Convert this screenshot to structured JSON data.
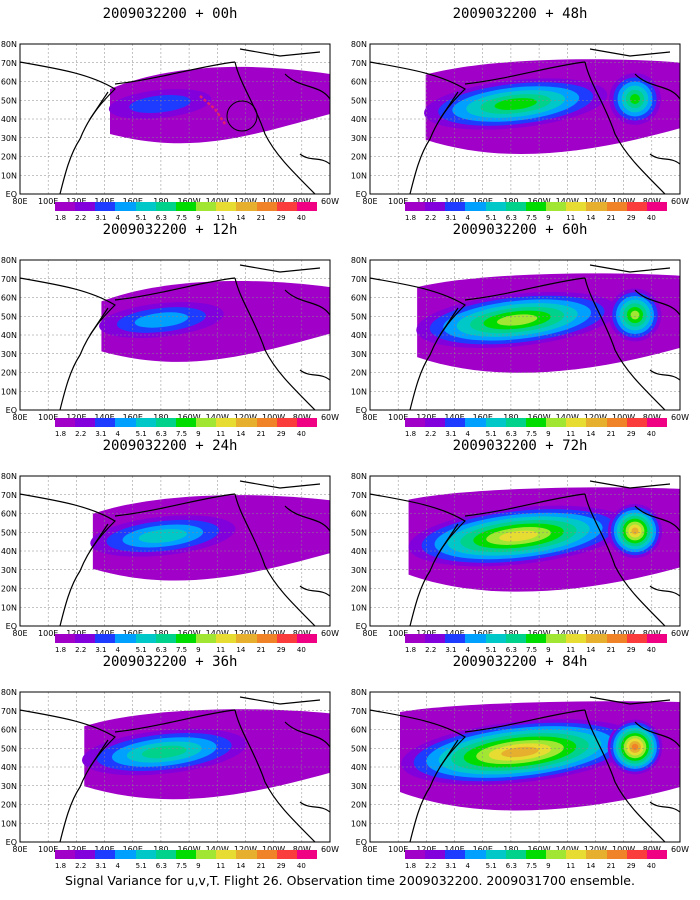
{
  "caption": "Signal Variance for u,v,T. Flight 26. Observation time 2009032200. 2009031700 ensemble.",
  "lat_labels": [
    "80N",
    "70N",
    "60N",
    "50N",
    "40N",
    "30N",
    "20N",
    "10N",
    "EQ"
  ],
  "lon_labels": [
    "80E",
    "100E",
    "120E",
    "140E",
    "160E",
    "180",
    "160W",
    "140W",
    "120W",
    "100W",
    "80W",
    "60W"
  ],
  "colorbar": {
    "levels": [
      "1.8",
      "2.2",
      "3.1",
      "4",
      "5.1",
      "6.3",
      "7.5",
      "9",
      "11",
      "14",
      "21",
      "29",
      "40"
    ],
    "colors": [
      "#a000c8",
      "#8200dc",
      "#1e3cff",
      "#00a0ff",
      "#00c8c8",
      "#00d28c",
      "#00dc00",
      "#a0e632",
      "#e6dc32",
      "#e6af2d",
      "#f08228",
      "#fa3c3c",
      "#f00082"
    ]
  },
  "panels": [
    {
      "title": "2009032200 + 00h",
      "lead_hours": 0
    },
    {
      "title": "2009032200 + 12h",
      "lead_hours": 12
    },
    {
      "title": "2009032200 + 24h",
      "lead_hours": 24
    },
    {
      "title": "2009032200 + 36h",
      "lead_hours": 36
    },
    {
      "title": "2009032200 + 48h",
      "lead_hours": 48
    },
    {
      "title": "2009032200 + 60h",
      "lead_hours": 60
    },
    {
      "title": "2009032200 + 72h",
      "lead_hours": 72
    },
    {
      "title": "2009032200 + 84h",
      "lead_hours": 84
    }
  ],
  "flight_track": {
    "label": "Flight 26",
    "color": "#e0206a"
  }
}
